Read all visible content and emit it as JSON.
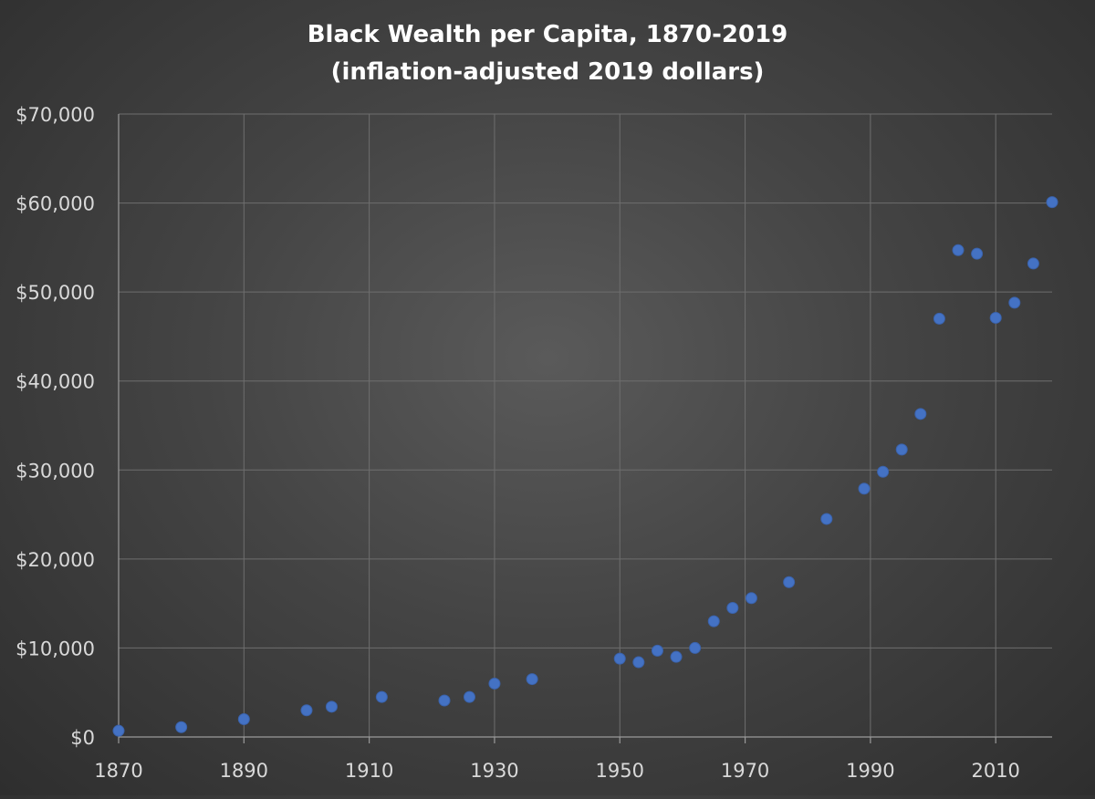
{
  "chart_data": {
    "type": "scatter",
    "title": "Black Wealth per Capita, 1870-2019",
    "subtitle": "(inflation-adjusted 2019 dollars)",
    "xlabel": "",
    "ylabel": "",
    "xlim": [
      1870,
      2019
    ],
    "ylim": [
      0,
      70000
    ],
    "x_ticks": [
      1870,
      1890,
      1910,
      1930,
      1950,
      1970,
      1990,
      2010
    ],
    "x_tick_labels": [
      "1870",
      "1890",
      "1910",
      "1930",
      "1950",
      "1970",
      "1990",
      "2010"
    ],
    "x_grid": [
      1870,
      1890,
      1910,
      1930,
      1950,
      1970,
      1990,
      2010
    ],
    "y_ticks": [
      0,
      10000,
      20000,
      30000,
      40000,
      50000,
      60000,
      70000
    ],
    "y_tick_labels": [
      "$0",
      "$10,000",
      "$20,000",
      "$30,000",
      "$40,000",
      "$50,000",
      "$60,000",
      "$70,000"
    ],
    "grid": true,
    "legend": "none",
    "point_color": "#4472c4",
    "series": [
      {
        "points": [
          {
            "x": 1870,
            "y": 700
          },
          {
            "x": 1880,
            "y": 1100
          },
          {
            "x": 1890,
            "y": 2000
          },
          {
            "x": 1900,
            "y": 3000
          },
          {
            "x": 1904,
            "y": 3400
          },
          {
            "x": 1912,
            "y": 4500
          },
          {
            "x": 1922,
            "y": 4100
          },
          {
            "x": 1926,
            "y": 4500
          },
          {
            "x": 1930,
            "y": 6000
          },
          {
            "x": 1936,
            "y": 6500
          },
          {
            "x": 1950,
            "y": 8800
          },
          {
            "x": 1953,
            "y": 8400
          },
          {
            "x": 1956,
            "y": 9700
          },
          {
            "x": 1959,
            "y": 9000
          },
          {
            "x": 1962,
            "y": 10000
          },
          {
            "x": 1965,
            "y": 13000
          },
          {
            "x": 1968,
            "y": 14500
          },
          {
            "x": 1971,
            "y": 15600
          },
          {
            "x": 1977,
            "y": 17400
          },
          {
            "x": 1983,
            "y": 24500
          },
          {
            "x": 1989,
            "y": 27900
          },
          {
            "x": 1992,
            "y": 29800
          },
          {
            "x": 1995,
            "y": 32300
          },
          {
            "x": 1998,
            "y": 36300
          },
          {
            "x": 2001,
            "y": 47000
          },
          {
            "x": 2004,
            "y": 54700
          },
          {
            "x": 2007,
            "y": 54300
          },
          {
            "x": 2010,
            "y": 47100
          },
          {
            "x": 2013,
            "y": 48800
          },
          {
            "x": 2016,
            "y": 53200
          },
          {
            "x": 2019,
            "y": 60100
          }
        ]
      }
    ]
  }
}
